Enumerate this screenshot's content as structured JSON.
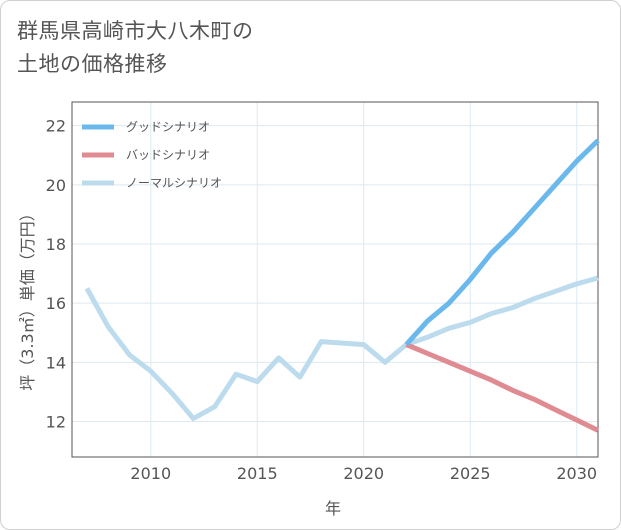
{
  "title": {
    "line1": "群馬県高崎市大八木町の",
    "line2": "土地の価格推移"
  },
  "colors": {
    "good": "#6ab8ec",
    "bad": "#e08a91",
    "normal": "#bcdcee",
    "grid": "#dde9f1",
    "axis": "#555555"
  },
  "chart_data": {
    "type": "line",
    "title": "群馬県高崎市大八木町の土地の価格推移",
    "xlabel": "年",
    "ylabel": "坪（3.3㎡）単価（万円）",
    "xlim": [
      2006.3,
      2031
    ],
    "ylim": [
      10.8,
      22.8
    ],
    "x_ticks": [
      2010,
      2015,
      2020,
      2025,
      2030
    ],
    "y_ticks": [
      12,
      14,
      16,
      18,
      20,
      22
    ],
    "grid": true,
    "legend_position": "top-left",
    "series": [
      {
        "name": "グッドシナリオ",
        "key": "good",
        "x": [
          2022,
          2023,
          2024,
          2025,
          2026,
          2027,
          2028,
          2029,
          2030,
          2031
        ],
        "values": [
          14.6,
          15.4,
          16.0,
          16.8,
          17.7,
          18.4,
          19.2,
          20.0,
          20.8,
          21.5
        ]
      },
      {
        "name": "バッドシナリオ",
        "key": "bad",
        "x": [
          2022,
          2023,
          2024,
          2025,
          2026,
          2027,
          2028,
          2029,
          2030,
          2031
        ],
        "values": [
          14.6,
          14.3,
          14.0,
          13.7,
          13.4,
          13.05,
          12.75,
          12.4,
          12.05,
          11.7
        ]
      },
      {
        "name": "ノーマルシナリオ",
        "key": "normal",
        "x": [
          2007,
          2008,
          2009,
          2010,
          2011,
          2012,
          2013,
          2014,
          2015,
          2016,
          2017,
          2018,
          2019,
          2020,
          2021,
          2022,
          2023,
          2024,
          2025,
          2026,
          2027,
          2028,
          2029,
          2030,
          2031
        ],
        "values": [
          16.5,
          15.2,
          14.25,
          13.7,
          12.95,
          12.1,
          12.5,
          13.6,
          13.35,
          14.15,
          13.5,
          14.7,
          14.65,
          14.6,
          14.0,
          14.6,
          14.85,
          15.15,
          15.35,
          15.65,
          15.85,
          16.15,
          16.4,
          16.65,
          16.85
        ]
      }
    ]
  }
}
